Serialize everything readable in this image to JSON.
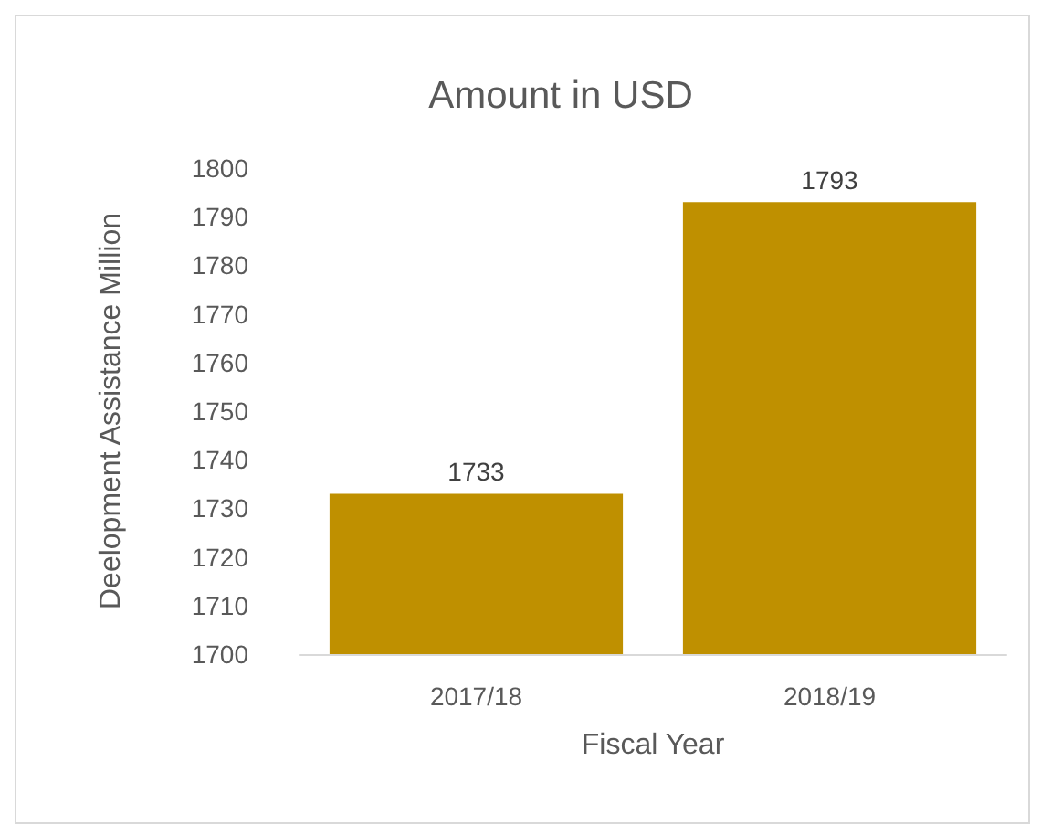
{
  "chart_data": {
    "type": "bar",
    "title": "Amount in USD",
    "xlabel": "Fiscal Year",
    "ylabel": "Deelopment Assistance Million",
    "categories": [
      "2017/18",
      "2018/19"
    ],
    "values": [
      1733,
      1793
    ],
    "color": "#bf9000",
    "ylim": [
      1700,
      1800
    ],
    "yticks": [
      1700,
      1710,
      1720,
      1730,
      1740,
      1750,
      1760,
      1770,
      1780,
      1790,
      1800
    ],
    "data_labels": true,
    "grid": false
  }
}
